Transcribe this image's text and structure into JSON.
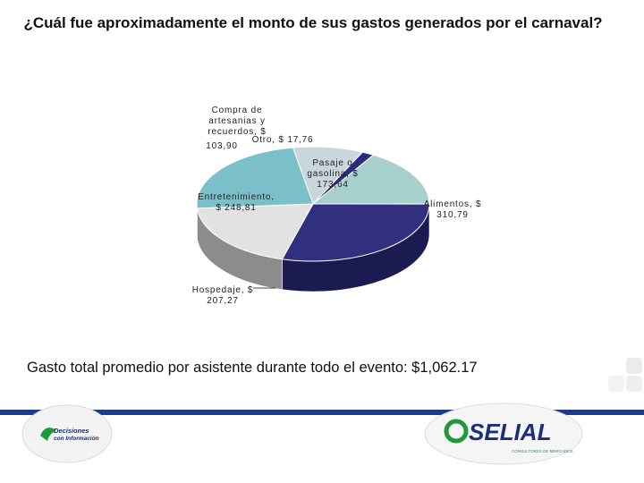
{
  "chart_data": {
    "type": "pie",
    "title": "¿Cuál fue aproximadamente el monto de sus gastos generados por el carnaval?",
    "slices": [
      {
        "label": "Compra de artesanias y recuerdos, $ 103,90",
        "value": 103.9,
        "color": "#c9d7dc",
        "side": "#8aa0a6"
      },
      {
        "label": "Otro, $ 17,76",
        "value": 17.76,
        "color": "#2a2a7e",
        "side": "#17174e"
      },
      {
        "label": "Pasaje o gasolina, $ 173,64",
        "value": 173.64,
        "color": "#a7cfcc",
        "side": "#6e9894"
      },
      {
        "label": "Alimentos, $ 310,79",
        "value": 310.79,
        "color": "#30307f",
        "side": "#1b1b52"
      },
      {
        "label": "Hospedaje, $ 207,27",
        "value": 207.27,
        "color": "#e2e2e2",
        "side": "#8c8c8c"
      },
      {
        "label": "Entretenimiento, $ 248,81",
        "value": 248.81,
        "color": "#7bbfc9",
        "side": "#3f6366"
      }
    ]
  },
  "summary": "Gasto total promedio por asistente durante todo el evento: $1,062.17",
  "footer": {
    "left_logo_line1": "Decisiones",
    "left_logo_line2": "con Información",
    "right_logo_text": "SELIAL",
    "right_logo_tagline": "CONSULTORES DE MERCADOS"
  },
  "colors": {
    "footer_bar": "#1c3b8c",
    "brand_green": "#1f9a3b",
    "brand_blue": "#1b2e7a"
  }
}
